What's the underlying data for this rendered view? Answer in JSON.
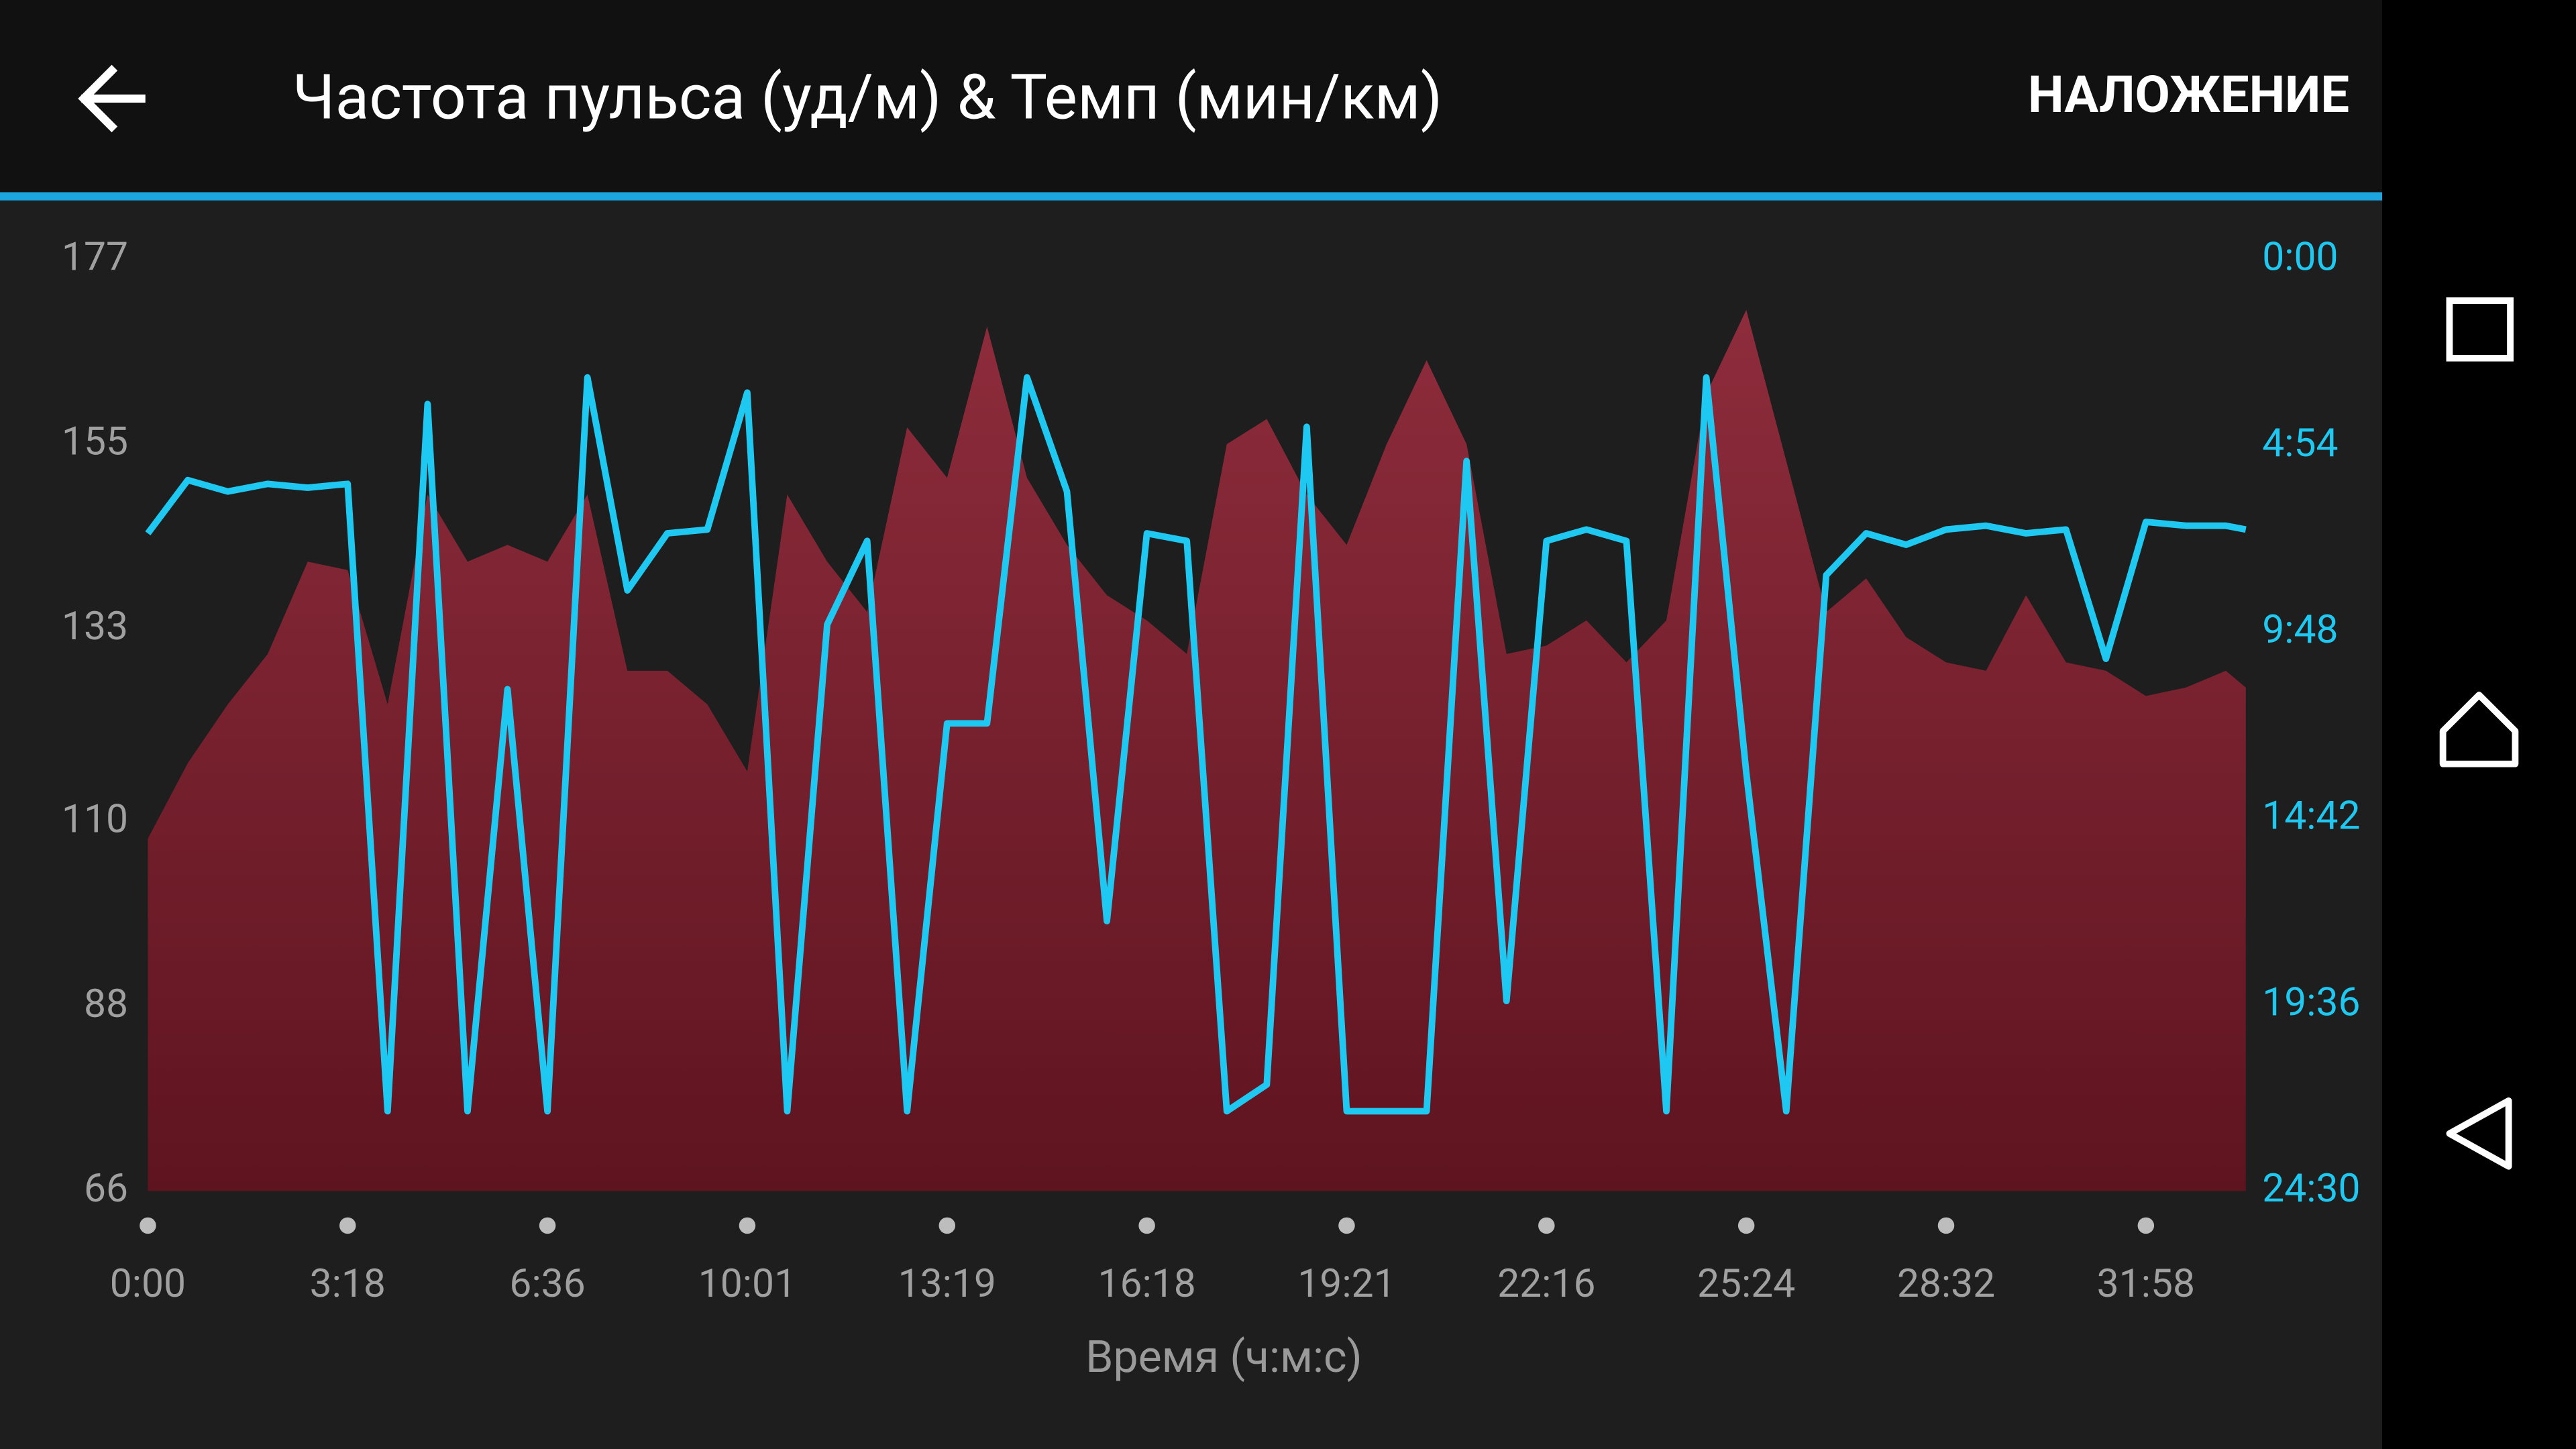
{
  "header": {
    "action": "НАЛОЖЕНИЕ"
  },
  "chart_data": {
    "type": "combo",
    "title": "Частота пульса (уд/м) & Темп (мин/км)",
    "x_label": "Время (ч:м:с)",
    "x": [
      0,
      0.2,
      0.4,
      0.6,
      0.8,
      1.0,
      1.2,
      1.4,
      1.6,
      1.8,
      2.0,
      2.2,
      2.4,
      2.6,
      2.8,
      3.0,
      3.2,
      3.4,
      3.6,
      3.8,
      4.0,
      4.2,
      4.4,
      4.6,
      4.8,
      5.0,
      5.2,
      5.4,
      5.6,
      5.8,
      6.0,
      6.2,
      6.4,
      6.6,
      6.8,
      7.0,
      7.2,
      7.4,
      7.6,
      7.8,
      8.0,
      8.2,
      8.4,
      8.6,
      8.8,
      9.0,
      9.2,
      9.4,
      9.6,
      9.8,
      10.0,
      10.2,
      10.4,
      10.5
    ],
    "series": [
      {
        "type": "area",
        "color": "#7c2433",
        "values": [
          108,
          117,
          124,
          130,
          141,
          140,
          124,
          149,
          141,
          143,
          141,
          149,
          128,
          128,
          124,
          116,
          149,
          141,
          135,
          157,
          151,
          169,
          151,
          143,
          137,
          134,
          130,
          155,
          158,
          149,
          143,
          155,
          165,
          155,
          130,
          131,
          134,
          129,
          134,
          161,
          171,
          153,
          135,
          139,
          132,
          129,
          128,
          137,
          129,
          128,
          125,
          126,
          128,
          126
        ]
      },
      {
        "type": "line",
        "axis": "y2",
        "color": "#1ec8f0",
        "values": [
          7.2,
          5.8,
          6.1,
          5.9,
          6.0,
          5.9,
          22.4,
          3.8,
          22.4,
          11.3,
          22.4,
          3.1,
          8.7,
          7.2,
          7.1,
          3.5,
          22.4,
          9.6,
          7.4,
          22.4,
          12.2,
          12.2,
          3.1,
          6.1,
          17.4,
          7.2,
          7.4,
          22.4,
          21.7,
          4.4,
          22.4,
          22.4,
          22.4,
          5.3,
          19.5,
          7.4,
          7.1,
          7.4,
          22.4,
          3.1,
          13.5,
          22.4,
          8.3,
          7.2,
          7.5,
          7.1,
          7.0,
          7.2,
          7.1,
          10.5,
          6.9,
          7.0,
          7.0,
          7.1
        ]
      }
    ],
    "xlim": [
      0,
      10.5
    ],
    "xticks": [
      {
        "value": 0,
        "label": "0:00"
      },
      {
        "value": 1,
        "label": "3:18"
      },
      {
        "value": 2,
        "label": "6:36"
      },
      {
        "value": 3,
        "label": "10:01"
      },
      {
        "value": 4,
        "label": "13:19"
      },
      {
        "value": 5,
        "label": "16:18"
      },
      {
        "value": 6,
        "label": "19:21"
      },
      {
        "value": 7,
        "label": "22:16"
      },
      {
        "value": 8,
        "label": "25:24"
      },
      {
        "value": 9,
        "label": "28:32"
      },
      {
        "value": 10,
        "label": "31:58"
      }
    ],
    "ylim": [
      66,
      177
    ],
    "yticks": [
      66,
      88,
      110,
      133,
      155,
      177
    ],
    "y2lim": [
      24.5,
      0
    ],
    "y2ticks": [
      {
        "value": 0,
        "label": "0:00"
      },
      {
        "value": 4.9,
        "label": "4:54"
      },
      {
        "value": 9.8,
        "label": "9:48"
      },
      {
        "value": 14.7,
        "label": "14:42"
      },
      {
        "value": 19.6,
        "label": "19:36"
      },
      {
        "value": 24.5,
        "label": "24:30"
      }
    ]
  }
}
